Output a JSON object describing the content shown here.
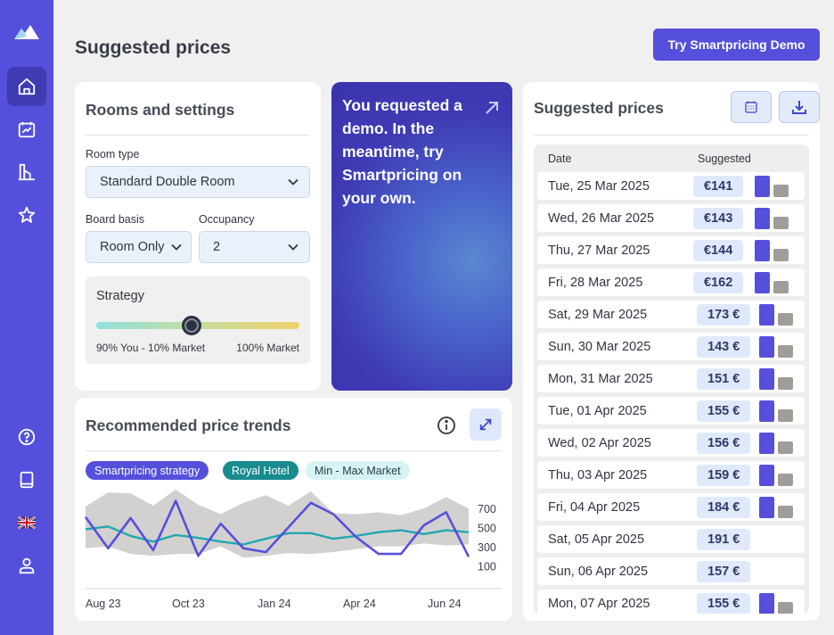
{
  "header": {
    "title": "Suggested prices",
    "demo_button": "Try Smartpricing Demo"
  },
  "sidebar": {
    "top_items": [
      {
        "name": "home",
        "icon": "home-icon",
        "active": true
      },
      {
        "name": "analytics",
        "icon": "chart-icon"
      },
      {
        "name": "property",
        "icon": "building-icon"
      },
      {
        "name": "favorites",
        "icon": "star-icon"
      }
    ],
    "bottom_items": [
      {
        "name": "help",
        "icon": "help-icon"
      },
      {
        "name": "docs",
        "icon": "book-icon"
      },
      {
        "name": "language",
        "icon": "uk-flag-icon"
      },
      {
        "name": "profile",
        "icon": "user-icon"
      }
    ]
  },
  "rooms": {
    "title": "Rooms and settings",
    "room_type_label": "Room type",
    "room_type_value": "Standard Double Room",
    "board_basis_label": "Board basis",
    "board_basis_value": "Room Only",
    "occupancy_label": "Occupancy",
    "occupancy_value": "2",
    "strategy": {
      "title": "Strategy",
      "left_label": "90% You - 10% Market",
      "right_label": "100% Market",
      "position": 0.47
    }
  },
  "promo": {
    "text": "You requested a demo. In the meantime, try Smartpricing on your own."
  },
  "trends": {
    "title": "Recommended price trends",
    "chips": [
      "Smartpricing strategy",
      "Royal Hotel",
      "Min - Max Market"
    ]
  },
  "chart_data": {
    "type": "line",
    "x_labels": [
      "Aug 23",
      "Oct 23",
      "Jan 24",
      "Apr 24",
      "Jun 24"
    ],
    "y_ticks": [
      700,
      500,
      300,
      100
    ],
    "ylim": [
      0,
      800
    ],
    "series": [
      {
        "name": "Smartpricing strategy",
        "color": "#5550db",
        "values": [
          530,
          200,
          520,
          180,
          700,
          120,
          460,
          200,
          160,
          420,
          680,
          560,
          320,
          140,
          140,
          440,
          580,
          110
        ]
      },
      {
        "name": "Royal Hotel",
        "color": "#22a8b2",
        "values": [
          400,
          430,
          330,
          270,
          340,
          310,
          270,
          240,
          300,
          360,
          360,
          300,
          330,
          370,
          390,
          350,
          390,
          370
        ]
      },
      {
        "name": "Min - Max Market",
        "color": "#d3d1cf",
        "max": [
          640,
          790,
          780,
          650,
          820,
          660,
          560,
          680,
          760,
          650,
          800,
          570,
          560,
          580,
          550,
          620,
          740,
          620
        ],
        "min": [
          200,
          220,
          140,
          120,
          140,
          140,
          220,
          100,
          120,
          150,
          140,
          160,
          190,
          220,
          220,
          250,
          230,
          240
        ]
      }
    ]
  },
  "prices": {
    "title": "Suggested prices",
    "calendar_icon": "calendar-icon",
    "download_icon": "download-icon",
    "col_date": "Date",
    "col_suggested": "Suggested",
    "rows": [
      {
        "date": "Tue, 25 Mar 2025",
        "price": "€141",
        "bars": true
      },
      {
        "date": "Wed, 26 Mar 2025",
        "price": "€143",
        "bars": true
      },
      {
        "date": "Thu, 27 Mar 2025",
        "price": "€144",
        "bars": true
      },
      {
        "date": "Fri, 28 Mar 2025",
        "price": "€162",
        "bars": true
      },
      {
        "date": "Sat, 29 Mar 2025",
        "price": "173 €",
        "bars": true
      },
      {
        "date": "Sun, 30 Mar 2025",
        "price": "143 €",
        "bars": true
      },
      {
        "date": "Mon, 31 Mar 2025",
        "price": "151 €",
        "bars": true
      },
      {
        "date": "Tue, 01 Apr 2025",
        "price": "155 €",
        "bars": true
      },
      {
        "date": "Wed, 02 Apr 2025",
        "price": "156 €",
        "bars": true
      },
      {
        "date": "Thu, 03 Apr 2025",
        "price": "159 €",
        "bars": true
      },
      {
        "date": "Fri, 04 Apr 2025",
        "price": "184 €",
        "bars": true
      },
      {
        "date": "Sat, 05 Apr 2025",
        "price": "191 €",
        "bars": false
      },
      {
        "date": "Sun, 06 Apr 2025",
        "price": "157 €",
        "bars": false
      },
      {
        "date": "Mon, 07 Apr 2025",
        "price": "155 €",
        "bars": true
      }
    ]
  }
}
